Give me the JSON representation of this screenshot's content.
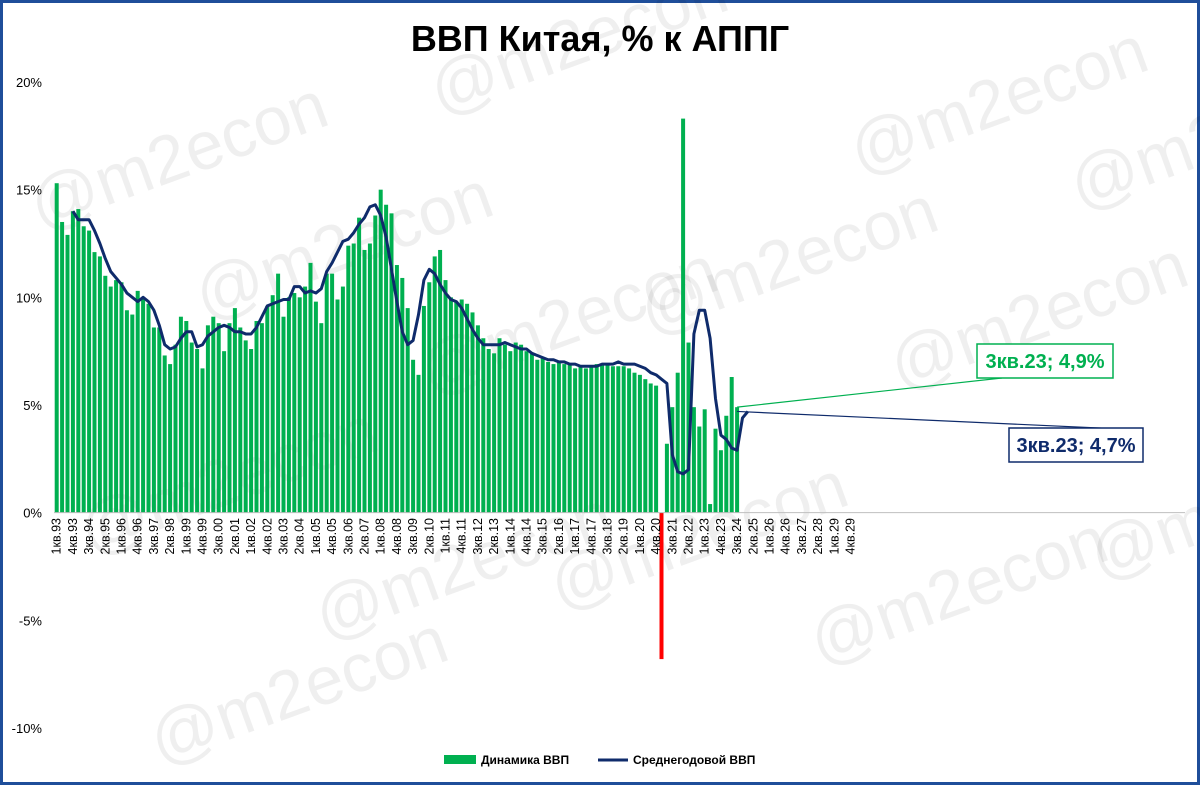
{
  "chart_data": {
    "type": "bar",
    "title": "ВВП Китая, % к АППГ",
    "watermark": "@m2econ",
    "y_ticks": [
      "20%",
      "15%",
      "10%",
      "5%",
      "0%",
      "-5%",
      "-10%"
    ],
    "ylim": [
      -10,
      20
    ],
    "x_tick_labels": [
      "1кв.93",
      "4кв.93",
      "3кв.94",
      "2кв.95",
      "1кв.96",
      "4кв.96",
      "3кв.97",
      "2кв.98",
      "1кв.99",
      "4кв.99",
      "3кв.00",
      "2кв.01",
      "1кв.02",
      "4кв.02",
      "3кв.03",
      "2кв.04",
      "1кв.05",
      "4кв.05",
      "3кв.06",
      "2кв.07",
      "1кв.08",
      "4кв.08",
      "3кв.09",
      "2кв.10",
      "1кв.11",
      "4кв.11",
      "3кв.12",
      "2кв.13",
      "1кв.14",
      "4кв.14",
      "3кв.15",
      "2кв.16",
      "1кв.17",
      "4кв.17",
      "3кв.18",
      "2кв.19",
      "1кв.20",
      "4кв.20",
      "3кв.21",
      "2кв.22",
      "1кв.23",
      "4кв.23",
      "3кв.24",
      "2кв.25",
      "1кв.26",
      "4кв.26",
      "3кв.27",
      "2кв.28",
      "1кв.29",
      "4кв.29"
    ],
    "highlight_color": "#ff0000",
    "series": [
      {
        "name": "Динамика ВВП",
        "kind": "bar",
        "color": "#00b050",
        "values": [
          15.3,
          13.5,
          12.9,
          14.0,
          14.1,
          13.3,
          13.1,
          12.1,
          11.9,
          11.0,
          10.5,
          10.8,
          10.7,
          9.4,
          9.2,
          10.3,
          9.9,
          9.7,
          8.6,
          8.6,
          7.3,
          6.9,
          7.8,
          9.1,
          8.9,
          7.9,
          7.6,
          6.7,
          8.7,
          9.1,
          8.8,
          7.5,
          8.8,
          9.5,
          8.6,
          8.0,
          7.6,
          8.9,
          8.8,
          9.6,
          10.1,
          11.1,
          9.1,
          10.0,
          10.2,
          10.0,
          10.5,
          11.6,
          9.8,
          8.8,
          11.1,
          11.1,
          9.9,
          10.5,
          12.4,
          12.5,
          13.7,
          12.2,
          12.5,
          13.8,
          15.0,
          14.3,
          13.9,
          11.5,
          10.9,
          9.5,
          7.1,
          6.4,
          9.6,
          10.7,
          11.9,
          12.2,
          10.8,
          10.0,
          9.8,
          9.9,
          9.7,
          9.3,
          8.7,
          8.1,
          7.6,
          7.4,
          8.1,
          7.8,
          7.5,
          7.9,
          7.8,
          7.5,
          7.4,
          7.1,
          7.2,
          7.0,
          6.9,
          7.0,
          6.9,
          6.9,
          6.7,
          6.8,
          6.7,
          6.8,
          6.9,
          6.9,
          6.9,
          6.8,
          6.8,
          6.8,
          6.7,
          6.5,
          6.4,
          6.2,
          6.0,
          5.9,
          -6.8,
          3.2,
          4.9,
          6.5,
          18.3,
          7.9,
          4.9,
          4.0,
          4.8,
          0.4,
          3.9,
          2.9,
          4.5,
          6.3,
          4.9
        ],
        "last_label": "3кв.23; 4,9%"
      },
      {
        "name": "Среднегодовой ВВП",
        "kind": "line",
        "color": "#0f2b6b",
        "start_index": 3,
        "values": [
          14.0,
          13.6,
          13.6,
          13.6,
          13.1,
          12.5,
          11.8,
          11.2,
          10.9,
          10.6,
          10.2,
          10.0,
          9.8,
          10.0,
          9.8,
          9.4,
          8.7,
          7.8,
          7.6,
          7.7,
          8.1,
          8.4,
          8.4,
          7.7,
          7.8,
          8.2,
          8.4,
          8.6,
          8.7,
          8.6,
          8.4,
          8.4,
          8.3,
          8.3,
          8.6,
          9.1,
          9.6,
          9.7,
          9.8,
          9.9,
          9.9,
          10.5,
          10.5,
          10.2,
          10.3,
          10.2,
          10.4,
          11.2,
          11.6,
          12.1,
          12.6,
          12.7,
          13.0,
          13.4,
          13.7,
          14.2,
          14.3,
          13.8,
          12.8,
          11.3,
          9.8,
          8.4,
          7.8,
          8.0,
          9.2,
          10.8,
          11.3,
          11.1,
          10.6,
          10.2,
          9.9,
          9.8,
          9.5,
          9.0,
          8.5,
          8.1,
          7.8,
          7.8,
          7.8,
          7.8,
          7.9,
          7.8,
          7.7,
          7.6,
          7.6,
          7.4,
          7.3,
          7.2,
          7.1,
          7.1,
          7.0,
          7.0,
          6.9,
          6.9,
          6.8,
          6.8,
          6.8,
          6.8,
          6.9,
          6.9,
          6.9,
          7.0,
          6.9,
          6.9,
          6.9,
          6.8,
          6.7,
          6.5,
          6.4,
          6.2,
          6.0,
          2.7,
          1.9,
          1.8,
          2.0,
          8.3,
          9.4,
          9.4,
          8.1,
          5.3,
          3.6,
          3.4,
          3.0,
          2.9,
          4.4,
          4.7
        ],
        "last_label": "3кв.23; 4,7%"
      }
    ]
  }
}
